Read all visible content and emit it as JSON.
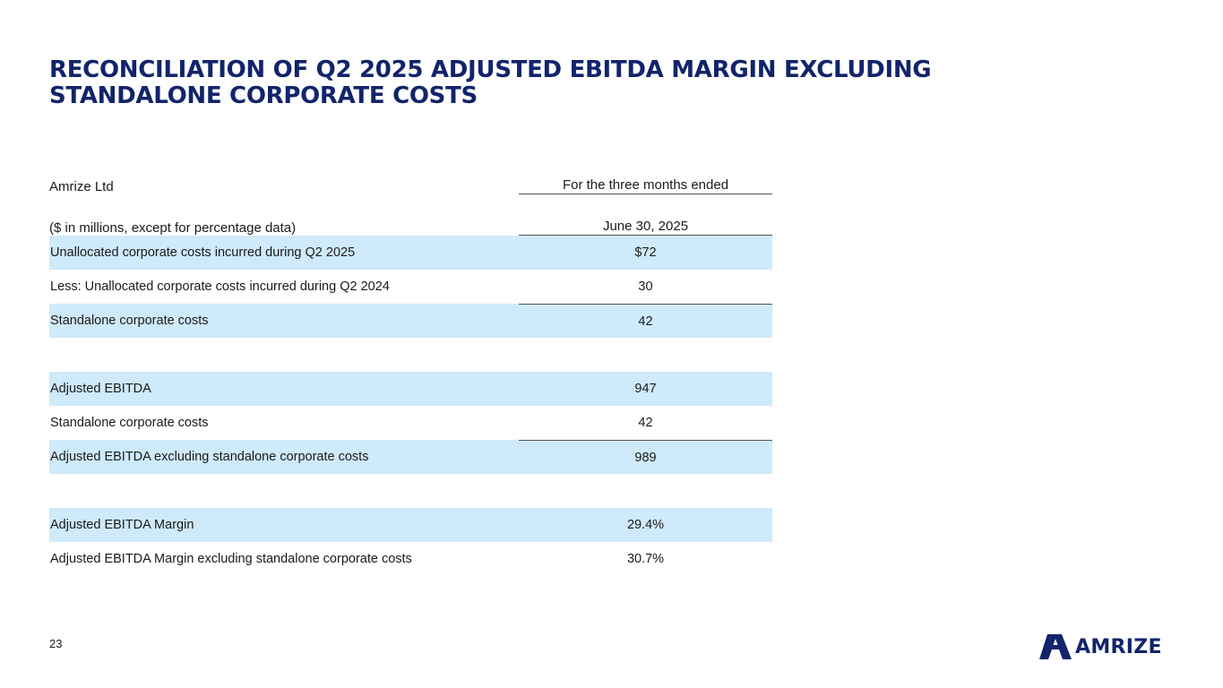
{
  "title": {
    "line1": "RECONCILIATION OF Q2 2025 ADJUSTED EBITDA MARGIN EXCLUDING",
    "line2": "STANDALONE CORPORATE COSTS"
  },
  "table": {
    "company": "Amrize Ltd",
    "period_header": "For the three months ended",
    "units_note": "($ in millions, except for percentage data)",
    "period_date": "June 30, 2025",
    "rows": [
      {
        "label": "Unallocated corporate costs incurred during Q2 2025",
        "value": "$72"
      },
      {
        "label": "Less: Unallocated corporate costs incurred during Q2 2024",
        "value": "30"
      },
      {
        "label": "Standalone corporate costs",
        "value": "42"
      },
      {
        "label": "Adjusted EBITDA",
        "value": "947"
      },
      {
        "label": "Standalone corporate costs",
        "value": "42"
      },
      {
        "label": "Adjusted EBITDA excluding standalone corporate costs",
        "value": "989"
      },
      {
        "label": "Adjusted EBITDA Margin",
        "value": "29.4%"
      },
      {
        "label": "Adjusted EBITDA Margin excluding standalone corporate costs",
        "value": "30.7%"
      }
    ]
  },
  "footer": {
    "page_number": "23",
    "logo_text": "AMRIZE"
  },
  "colors": {
    "brand_navy": "#12246b",
    "row_shade": "#cfeafb"
  }
}
